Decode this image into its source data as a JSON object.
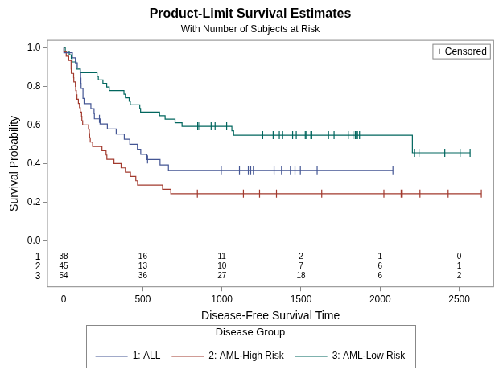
{
  "chart_data": {
    "type": "line",
    "title": "Product-Limit Survival Estimates",
    "subtitle": "With Number of Subjects at Risk",
    "x_label": "Disease-Free Survival Time",
    "y_label": "Survival Probability",
    "xlim": [
      -105,
      2720
    ],
    "xticks": [
      0,
      500,
      1000,
      1500,
      2000,
      2500
    ],
    "ylim": [
      -0.24,
      1.04
    ],
    "yticks": [
      {
        "value": 0,
        "label": "0.0"
      },
      {
        "value": 0.2,
        "label": "0.2"
      },
      {
        "value": 0.4,
        "label": "0.4"
      },
      {
        "value": 0.6,
        "label": "0.6"
      },
      {
        "value": 0.8,
        "label": "0.8"
      },
      {
        "value": 1,
        "label": "1.0"
      }
    ],
    "grid": false,
    "legend": "bottom",
    "legend_title": "Disease Group",
    "line_style": "step",
    "censored_label": "+ Censored",
    "series": [
      {
        "name": "1: ALL",
        "color": "#445694",
        "x": [
          0,
          1,
          55,
          74,
          86,
          104,
          107,
          109,
          110,
          122,
          129,
          172,
          192,
          194,
          230,
          276,
          332,
          383,
          418,
          466,
          487,
          526,
          609,
          662,
          2081
        ],
        "values": [
          1,
          0.9737,
          0.9474,
          0.9211,
          0.8947,
          0.8684,
          0.8421,
          0.8158,
          0.7895,
          0.7368,
          0.7105,
          0.6842,
          0.6579,
          0.6316,
          0.6053,
          0.5789,
          0.5526,
          0.5263,
          0.5,
          0.4737,
          0.4474,
          0.4211,
          0.393,
          0.3649,
          0.3649
        ],
        "censored_x": [
          226,
          530,
          996,
          1111,
          1167,
          1182,
          1199,
          1330,
          1377,
          1433,
          1462,
          1496,
          1602,
          2081
        ],
        "censored_values": [
          0.6316,
          0.4211,
          0.3649,
          0.3649,
          0.3649,
          0.3649,
          0.3649,
          0.3649,
          0.3649,
          0.3649,
          0.3649,
          0.3649,
          0.3649,
          0.3649
        ]
      },
      {
        "name": "2: AML-High Risk",
        "color": "#A23A2E",
        "x": [
          0,
          2,
          16,
          32,
          47,
          48,
          63,
          64,
          74,
          76,
          80,
          84,
          93,
          100,
          105,
          113,
          115,
          120,
          157,
          162,
          164,
          168,
          183,
          242,
          268,
          273,
          318,
          363,
          390,
          422,
          456,
          467,
          625,
          677,
          2640
        ],
        "values": [
          1,
          0.9778,
          0.9556,
          0.9333,
          0.8889,
          0.8667,
          0.8444,
          0.8222,
          0.8,
          0.7778,
          0.7556,
          0.7333,
          0.7111,
          0.6889,
          0.6667,
          0.6444,
          0.6222,
          0.6,
          0.5778,
          0.5556,
          0.5333,
          0.5111,
          0.4889,
          0.4667,
          0.4444,
          0.4222,
          0.4,
          0.3778,
          0.3556,
          0.3333,
          0.3111,
          0.2889,
          0.2667,
          0.2444,
          0.2444
        ],
        "censored_x": [
          845,
          1136,
          1238,
          1345,
          1631,
          2024,
          2133,
          2140,
          2252,
          2430,
          2640
        ],
        "censored_values": [
          0.2444,
          0.2444,
          0.2444,
          0.2444,
          0.2444,
          0.2444,
          0.2444,
          0.2444,
          0.2444,
          0.2444,
          0.2444
        ]
      },
      {
        "name": "3: AML-Low Risk",
        "color": "#01665E",
        "x": [
          0,
          10,
          35,
          48,
          53,
          79,
          80,
          105,
          211,
          219,
          248,
          272,
          288,
          381,
          390,
          414,
          421,
          481,
          486,
          606,
          641,
          704,
          748,
          1063,
          1074,
          2204,
          2569
        ],
        "values": [
          1,
          0.9815,
          0.963,
          0.9444,
          0.9259,
          0.9074,
          0.8889,
          0.8704,
          0.8519,
          0.8333,
          0.8148,
          0.7963,
          0.7778,
          0.7593,
          0.7407,
          0.7222,
          0.7037,
          0.6852,
          0.6667,
          0.6481,
          0.6296,
          0.6111,
          0.5926,
          0.5698,
          0.547,
          0.4558,
          0.4558
        ],
        "censored_x": [
          847,
          848,
          860,
          932,
          957,
          1030,
          1258,
          1324,
          1363,
          1384,
          1447,
          1470,
          1527,
          1535,
          1562,
          1568,
          1674,
          1709,
          1799,
          1829,
          1843,
          1850,
          1857,
          1870,
          2218,
          2246,
          2409,
          2506,
          2569
        ],
        "censored_values": [
          0.5926,
          0.5926,
          0.5926,
          0.5926,
          0.5926,
          0.5926,
          0.547,
          0.547,
          0.547,
          0.547,
          0.547,
          0.547,
          0.547,
          0.547,
          0.547,
          0.547,
          0.547,
          0.547,
          0.547,
          0.547,
          0.547,
          0.547,
          0.547,
          0.547,
          0.4558,
          0.4558,
          0.4558,
          0.4558,
          0.4558
        ]
      }
    ],
    "at_risk": {
      "x": [
        0,
        500,
        1000,
        1500,
        2000,
        2500
      ],
      "rows": [
        {
          "label": "1",
          "values": [
            38,
            16,
            11,
            2,
            1,
            0
          ]
        },
        {
          "label": "2",
          "values": [
            45,
            13,
            10,
            7,
            6,
            1
          ]
        },
        {
          "label": "3",
          "values": [
            54,
            36,
            27,
            18,
            6,
            2
          ]
        }
      ]
    }
  }
}
